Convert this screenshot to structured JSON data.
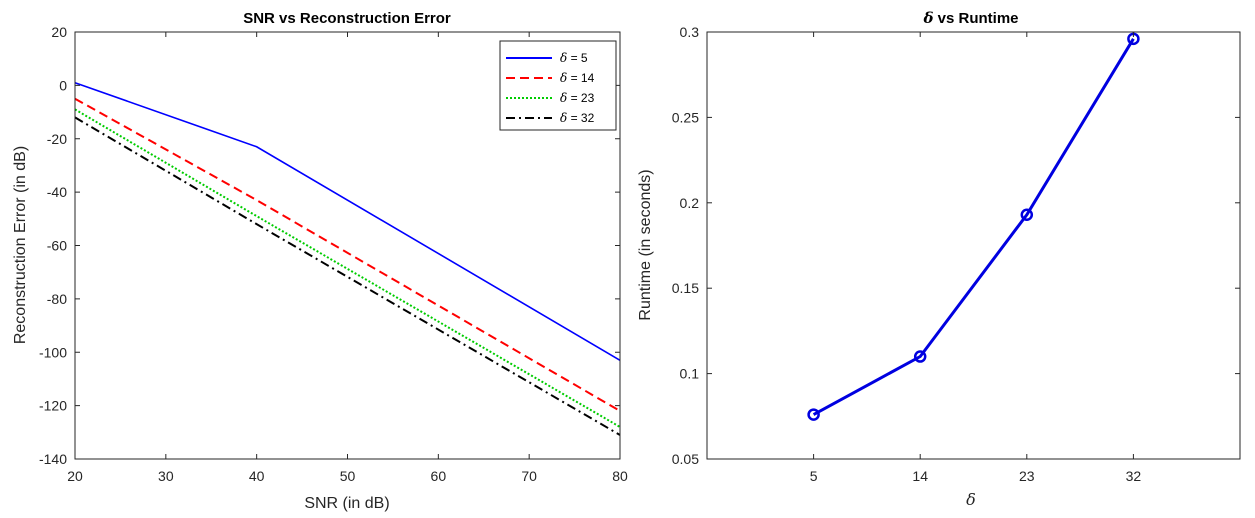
{
  "chart_data": [
    {
      "type": "line",
      "title": "SNR vs Reconstruction Error",
      "xlabel": "SNR (in dB)",
      "ylabel": "Reconstruction Error (in dB)",
      "xlim": [
        20,
        80
      ],
      "ylim": [
        -140,
        20
      ],
      "xticks": [
        20,
        30,
        40,
        50,
        60,
        70,
        80
      ],
      "yticks": [
        -140,
        -120,
        -100,
        -80,
        -60,
        -40,
        -20,
        0,
        20
      ],
      "grid": false,
      "legend_position": "top-right",
      "x": [
        20,
        40,
        80
      ],
      "series": [
        {
          "name": "δ = 5",
          "symbol": "δ",
          "label_rest": " = 5",
          "values": [
            1,
            -23,
            -103
          ],
          "color": "#0000ff",
          "style": "solid"
        },
        {
          "name": "δ = 14",
          "symbol": "δ",
          "label_rest": " = 14",
          "values": [
            -5,
            -43,
            -122
          ],
          "color": "#ff0000",
          "style": "dashed"
        },
        {
          "name": "δ = 23",
          "symbol": "δ",
          "label_rest": " = 23",
          "values": [
            -9,
            -49,
            -128
          ],
          "color": "#00cc00",
          "style": "dotted"
        },
        {
          "name": "δ = 32",
          "symbol": "δ",
          "label_rest": " = 32",
          "values": [
            -12,
            -52,
            -131
          ],
          "color": "#000000",
          "style": "dashdot"
        }
      ]
    },
    {
      "type": "line",
      "title_symbol": "δ",
      "title_rest": " vs Runtime",
      "xlabel": "δ",
      "ylabel": "Runtime (in seconds)",
      "categories": [
        "5",
        "14",
        "23",
        "32"
      ],
      "ylim": [
        0.05,
        0.3
      ],
      "yticks": [
        0.05,
        0.1,
        0.15,
        0.2,
        0.25,
        0.3
      ],
      "grid": false,
      "series": [
        {
          "values": [
            0.076,
            0.11,
            0.193,
            0.296
          ],
          "color": "#0000e0",
          "marker": "o"
        }
      ]
    }
  ]
}
